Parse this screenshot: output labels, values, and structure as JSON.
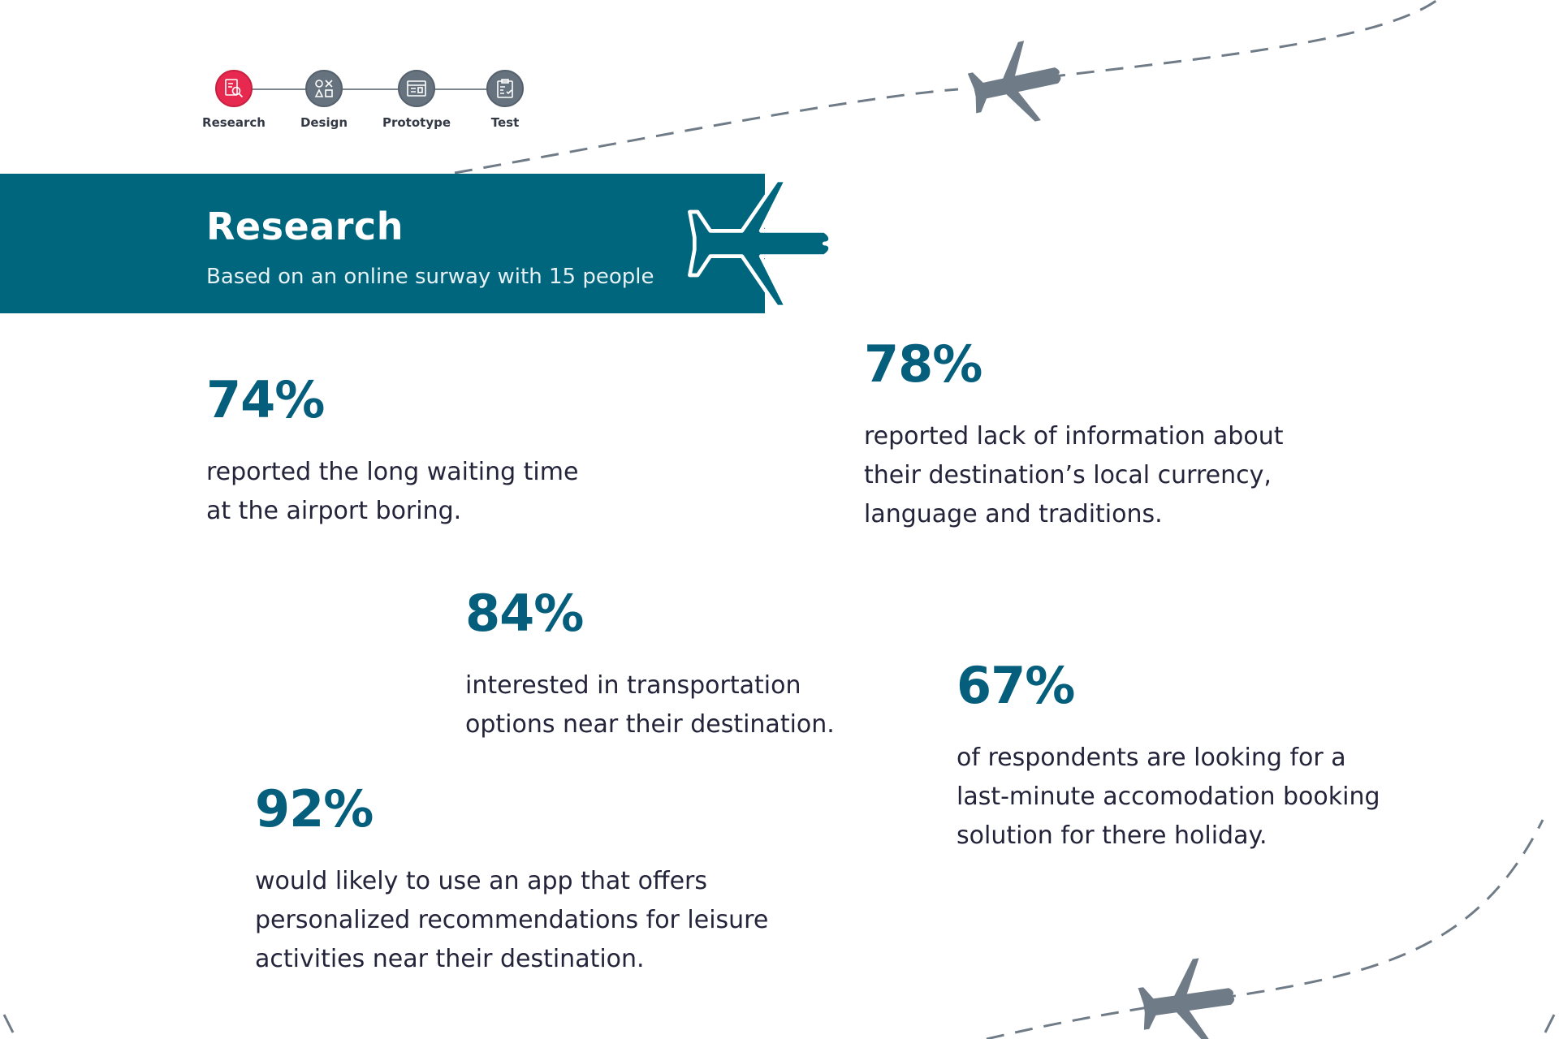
{
  "colors": {
    "accent": "#e8294f",
    "teal": "#00667e",
    "step_gray": "#66737f",
    "text": "#23233a",
    "plane_gray": "#6f7b87"
  },
  "stepper": [
    {
      "label": "Research",
      "icon": "research-icon",
      "active": true
    },
    {
      "label": "Design",
      "icon": "shapes-icon",
      "active": false
    },
    {
      "label": "Prototype",
      "icon": "browser-window-icon",
      "active": false
    },
    {
      "label": "Test",
      "icon": "clipboard-check-icon",
      "active": false
    }
  ],
  "banner": {
    "title": "Research",
    "subtitle": "Based on an online surway with 15 people",
    "icon": "airplane-icon"
  },
  "stats": [
    {
      "value": "74%",
      "lines": [
        "reported the long waiting time",
        "at the airport boring."
      ]
    },
    {
      "value": "78%",
      "lines": [
        "reported lack of information about",
        "their destination’s local currency,",
        "language and traditions."
      ]
    },
    {
      "value": "84%",
      "lines": [
        "interested in transportation",
        "options near their destination."
      ]
    },
    {
      "value": "67%",
      "lines": [
        "of respondents are looking for a",
        "last-minute accomodation booking",
        "solution for there holiday."
      ]
    },
    {
      "value": "92%",
      "lines": [
        "would likely to use an app that offers",
        "personalized recommendations for leisure",
        "activities near their destination."
      ]
    }
  ]
}
